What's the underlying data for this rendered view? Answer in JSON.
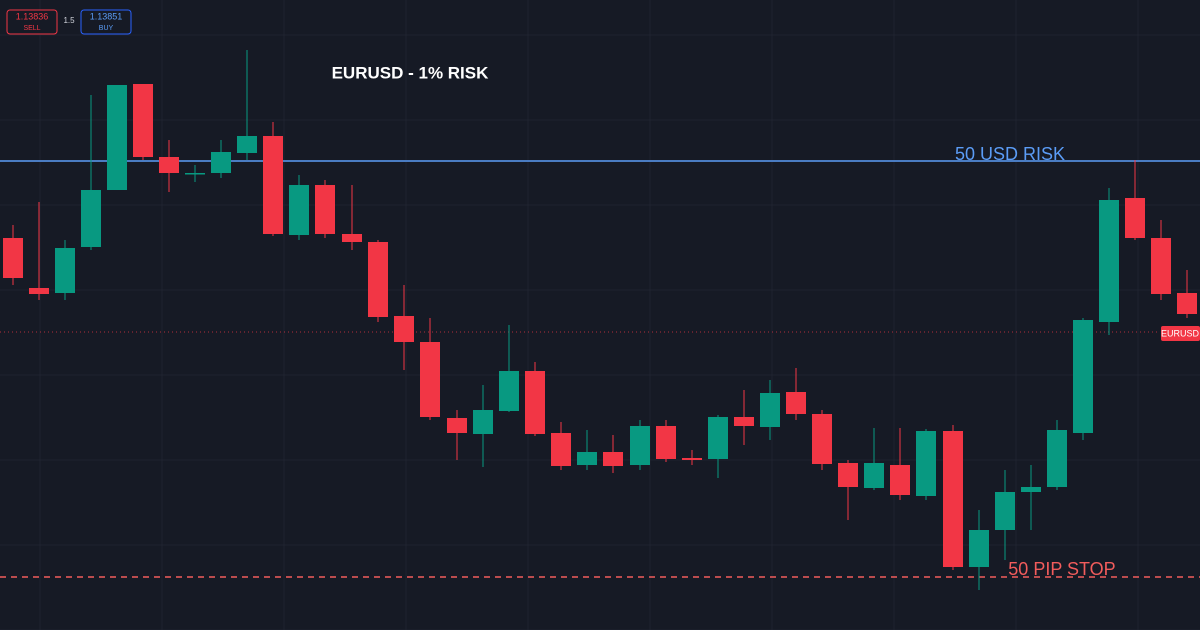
{
  "toolbar": {
    "sell_price": "1.13836",
    "sell_label": "SELL",
    "spread": "1.5",
    "buy_price": "1.13851",
    "buy_label": "BUY"
  },
  "title": "EURUSD - 1% RISK",
  "risk_line_label": "50 USD RISK",
  "stop_line_label": "50 PIP STOP",
  "price_tag": "EURUSD"
}
